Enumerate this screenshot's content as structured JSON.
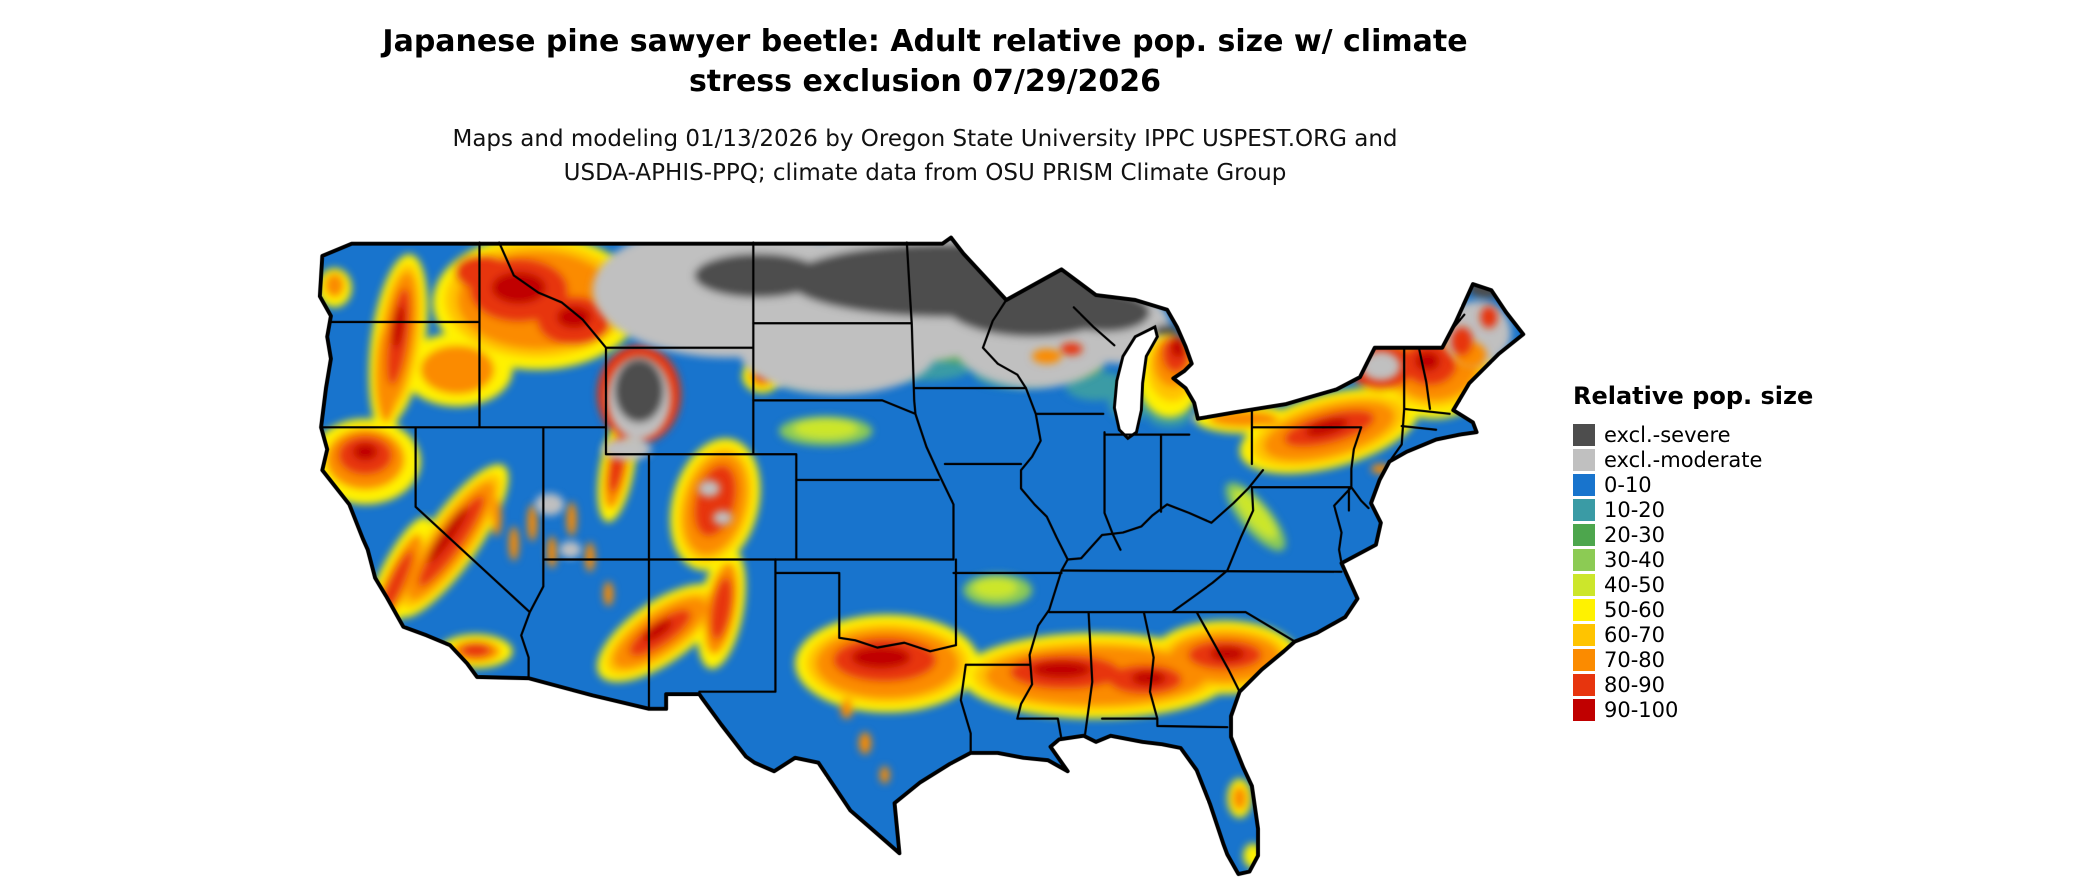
{
  "title": {
    "line1": "Japanese pine sawyer beetle: Adult relative pop. size w/ climate",
    "line2": "stress exclusion 07/29/2026"
  },
  "subtitle": {
    "line1": "Maps and modeling 01/13/2026 by Oregon State University IPPC USPEST.ORG and",
    "line2": "USDA-APHIS-PPQ; climate data from OSU PRISM Climate Group"
  },
  "legend": {
    "title": "Relative pop. size",
    "items": [
      {
        "key": "excl.-severe",
        "label": "excl.-severe",
        "color": "#4D4D4D"
      },
      {
        "key": "excl.-moderate",
        "label": "excl.-moderate",
        "color": "#C0C0C0"
      },
      {
        "key": "0-10",
        "label": "0-10",
        "color": "#1874CD"
      },
      {
        "key": "10-20",
        "label": "10-20",
        "color": "#3A9BA5"
      },
      {
        "key": "20-30",
        "label": "20-30",
        "color": "#4DA64D"
      },
      {
        "key": "30-40",
        "label": "30-40",
        "color": "#8CCB54"
      },
      {
        "key": "40-50",
        "label": "40-50",
        "color": "#CCE62B"
      },
      {
        "key": "50-60",
        "label": "50-60",
        "color": "#FFF200"
      },
      {
        "key": "60-70",
        "label": "60-70",
        "color": "#FFC400"
      },
      {
        "key": "70-80",
        "label": "70-80",
        "color": "#FB8B00"
      },
      {
        "key": "80-90",
        "label": "80-90",
        "color": "#E7350E"
      },
      {
        "key": "90-100",
        "label": "90-100",
        "color": "#C00000"
      }
    ]
  },
  "map": {
    "outline_color": "#000000",
    "water_color": "#FFFFFF",
    "background_color": "#FFFFFF"
  }
}
